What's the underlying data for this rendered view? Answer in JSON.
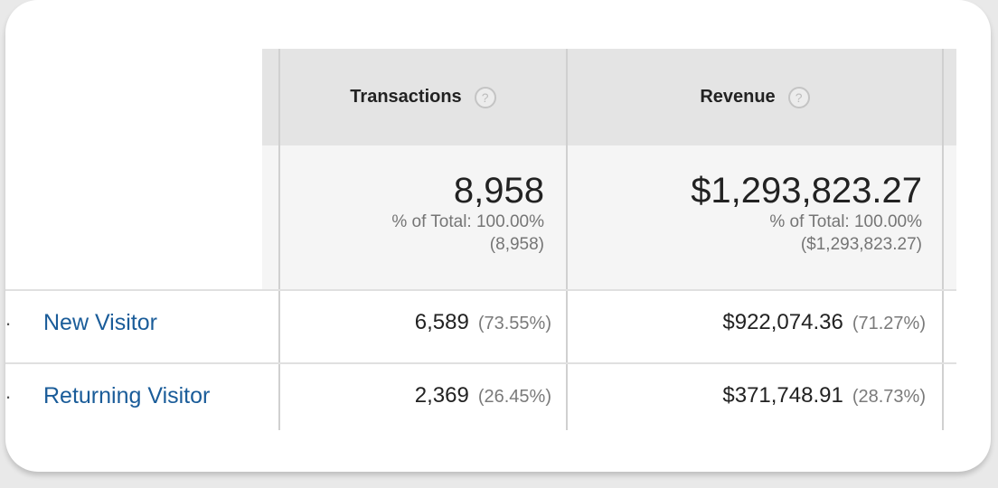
{
  "columns": [
    {
      "label": "Transactions",
      "help": "?"
    },
    {
      "label": "Revenue",
      "help": "?"
    }
  ],
  "totals": [
    {
      "value": "8,958",
      "pct_label": "% of Total: 100.00%",
      "total": "(8,958)"
    },
    {
      "value": "$1,293,823.27",
      "pct_label": "% of Total: 100.00%",
      "total": "($1,293,823.27)"
    }
  ],
  "rows": [
    {
      "marker": ".",
      "label": "New Visitor",
      "cells": [
        {
          "value": "6,589",
          "pct": "(73.55%)"
        },
        {
          "value": "$922,074.36",
          "pct": "(71.27%)"
        }
      ]
    },
    {
      "marker": ".",
      "label": "Returning Visitor",
      "cells": [
        {
          "value": "2,369",
          "pct": "(26.45%)"
        },
        {
          "value": "$371,748.91",
          "pct": "(28.73%)"
        }
      ]
    }
  ]
}
